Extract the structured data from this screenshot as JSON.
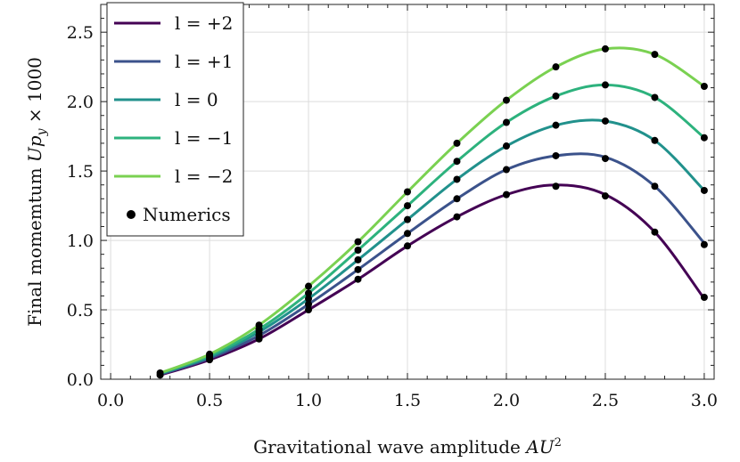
{
  "chart_data": {
    "type": "line",
    "xlabel": "Gravitational wave amplitude AU²",
    "ylabel": "Final momentum Up_y × 1000",
    "xlim": [
      -0.05,
      3.05
    ],
    "ylim": [
      0.0,
      2.7
    ],
    "x_ticks": [
      0.0,
      0.5,
      1.0,
      1.5,
      2.0,
      2.5,
      3.0
    ],
    "y_ticks": [
      0.0,
      0.5,
      1.0,
      1.5,
      2.0,
      2.5
    ],
    "x_tick_labels": [
      "0.0",
      "0.5",
      "1.0",
      "1.5",
      "2.0",
      "2.5",
      "3.0"
    ],
    "y_tick_labels": [
      "0.0",
      "0.5",
      "1.0",
      "1.5",
      "2.0",
      "2.5"
    ],
    "grid": true,
    "legend_position": "top-left",
    "series": [
      {
        "name": "l = +2",
        "color": "#440154",
        "x": [
          0.25,
          0.5,
          0.75,
          1.0,
          1.25,
          1.5,
          1.75,
          2.0,
          2.25,
          2.5,
          2.75,
          3.0
        ],
        "y": [
          0.03,
          0.14,
          0.29,
          0.5,
          0.72,
          0.96,
          1.17,
          1.33,
          1.4,
          1.33,
          1.06,
          0.58
        ]
      },
      {
        "name": "l = +1",
        "color": "#3b528b",
        "x": [
          0.25,
          0.5,
          0.75,
          1.0,
          1.25,
          1.5,
          1.75,
          2.0,
          2.25,
          2.5,
          2.75,
          3.0
        ],
        "y": [
          0.035,
          0.15,
          0.315,
          0.54,
          0.79,
          1.05,
          1.3,
          1.51,
          1.61,
          1.6,
          1.39,
          0.98
        ]
      },
      {
        "name": "l = 0",
        "color": "#21918c",
        "x": [
          0.25,
          0.5,
          0.75,
          1.0,
          1.25,
          1.5,
          1.75,
          2.0,
          2.25,
          2.5,
          2.75,
          3.0
        ],
        "y": [
          0.04,
          0.16,
          0.34,
          0.58,
          0.86,
          1.15,
          1.44,
          1.68,
          1.83,
          1.86,
          1.72,
          1.36
        ]
      },
      {
        "name": "l = −1",
        "color": "#2db27d",
        "x": [
          0.25,
          0.5,
          0.75,
          1.0,
          1.25,
          1.5,
          1.75,
          2.0,
          2.25,
          2.5,
          2.75,
          3.0
        ],
        "y": [
          0.042,
          0.17,
          0.36,
          0.62,
          0.93,
          1.25,
          1.57,
          1.85,
          2.04,
          2.12,
          2.03,
          1.74
        ]
      },
      {
        "name": "l = −2",
        "color": "#7ad151",
        "x": [
          0.25,
          0.5,
          0.75,
          1.0,
          1.25,
          1.5,
          1.75,
          2.0,
          2.25,
          2.5,
          2.75,
          3.0
        ],
        "y": [
          0.045,
          0.18,
          0.39,
          0.67,
          0.99,
          1.35,
          1.7,
          2.01,
          2.25,
          2.38,
          2.34,
          2.11
        ]
      }
    ],
    "numerics": {
      "name": "Numerics",
      "color": "#000000",
      "points": [
        [
          0.25,
          0.03
        ],
        [
          0.25,
          0.045
        ],
        [
          0.5,
          0.14
        ],
        [
          0.5,
          0.15
        ],
        [
          0.5,
          0.16
        ],
        [
          0.5,
          0.17
        ],
        [
          0.5,
          0.18
        ],
        [
          0.75,
          0.29
        ],
        [
          0.75,
          0.315
        ],
        [
          0.75,
          0.34
        ],
        [
          0.75,
          0.36
        ],
        [
          0.75,
          0.39
        ],
        [
          1.0,
          0.5
        ],
        [
          1.0,
          0.54
        ],
        [
          1.0,
          0.58
        ],
        [
          1.0,
          0.62
        ],
        [
          1.0,
          0.67
        ],
        [
          1.25,
          0.72
        ],
        [
          1.25,
          0.79
        ],
        [
          1.25,
          0.86
        ],
        [
          1.25,
          0.93
        ],
        [
          1.25,
          0.99
        ],
        [
          1.5,
          0.96
        ],
        [
          1.5,
          1.05
        ],
        [
          1.5,
          1.15
        ],
        [
          1.5,
          1.25
        ],
        [
          1.5,
          1.35
        ],
        [
          1.75,
          1.17
        ],
        [
          1.75,
          1.3
        ],
        [
          1.75,
          1.44
        ],
        [
          1.75,
          1.57
        ],
        [
          1.75,
          1.7
        ],
        [
          2.0,
          1.33
        ],
        [
          2.0,
          1.51
        ],
        [
          2.0,
          1.68
        ],
        [
          2.0,
          1.85
        ],
        [
          2.0,
          2.01
        ],
        [
          2.25,
          1.39
        ],
        [
          2.25,
          1.61
        ],
        [
          2.25,
          1.83
        ],
        [
          2.25,
          2.04
        ],
        [
          2.25,
          2.25
        ],
        [
          2.5,
          1.32
        ],
        [
          2.5,
          1.59
        ],
        [
          2.5,
          1.86
        ],
        [
          2.5,
          2.12
        ],
        [
          2.5,
          2.38
        ],
        [
          2.75,
          1.06
        ],
        [
          2.75,
          1.39
        ],
        [
          2.75,
          1.72
        ],
        [
          2.75,
          2.03
        ],
        [
          2.75,
          2.34
        ],
        [
          3.0,
          0.59
        ],
        [
          3.0,
          0.97
        ],
        [
          3.0,
          1.36
        ],
        [
          3.0,
          1.74
        ],
        [
          3.0,
          2.11
        ]
      ]
    }
  }
}
